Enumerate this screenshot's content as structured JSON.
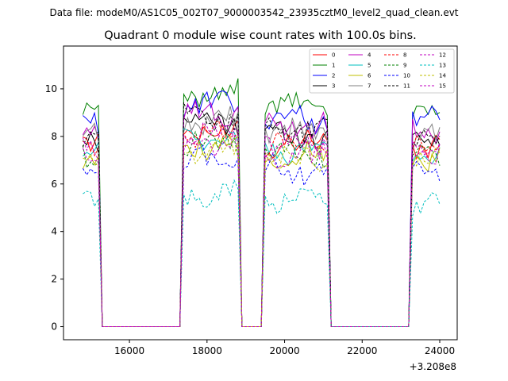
{
  "figure": {
    "suptitle": "Data file: modeM0/AS1C05_002T07_9000003542_23935cztM0_level2_quad_clean.evt"
  },
  "chart_data": {
    "type": "line",
    "title": "Quadrant 0 module wise count rates with 100.0s bins.",
    "xlabel": "",
    "ylabel": "",
    "x_offset_label": "+3.208e8",
    "xlim": [
      14300,
      24450
    ],
    "ylim": [
      -0.55,
      11.8
    ],
    "xticks": [
      16000,
      18000,
      20000,
      22000,
      24000
    ],
    "xtick_labels": [
      "16000",
      "18000",
      "20000",
      "22000",
      "24000"
    ],
    "yticks": [
      0,
      2,
      4,
      6,
      8,
      10
    ],
    "ytick_labels": [
      "0",
      "2",
      "4",
      "6",
      "8",
      "10"
    ],
    "grid": false,
    "legend": {
      "location": "top-right",
      "columns": 4
    },
    "gti_segments": [
      [
        14800,
        15200
      ],
      [
        17400,
        18800
      ],
      [
        19500,
        21100
      ],
      [
        23300,
        24000
      ]
    ],
    "series": [
      {
        "name": "0",
        "color": "#ff0000",
        "dashed": false,
        "level": 7.6
      },
      {
        "name": "1",
        "color": "#008000",
        "dashed": false,
        "level": 9.1
      },
      {
        "name": "2",
        "color": "#0000ff",
        "dashed": false,
        "level": 8.6
      },
      {
        "name": "3",
        "color": "#000000",
        "dashed": false,
        "level": 7.9
      },
      {
        "name": "4",
        "color": "#c000c0",
        "dashed": false,
        "level": 8.3
      },
      {
        "name": "5",
        "color": "#00bfbf",
        "dashed": false,
        "level": 7.3
      },
      {
        "name": "6",
        "color": "#bfbf00",
        "dashed": false,
        "level": 7.0
      },
      {
        "name": "7",
        "color": "#808080",
        "dashed": false,
        "level": 8.0
      },
      {
        "name": "8",
        "color": "#ff0000",
        "dashed": true,
        "level": 7.5
      },
      {
        "name": "9",
        "color": "#008000",
        "dashed": true,
        "level": 7.1
      },
      {
        "name": "10",
        "color": "#0000ff",
        "dashed": true,
        "level": 6.5
      },
      {
        "name": "11",
        "color": "#000000",
        "dashed": true,
        "level": 8.1
      },
      {
        "name": "12",
        "color": "#c000c0",
        "dashed": true,
        "level": 7.2
      },
      {
        "name": "13",
        "color": "#00bfbf",
        "dashed": true,
        "level": 5.2
      },
      {
        "name": "14",
        "color": "#bfbf00",
        "dashed": true,
        "level": 6.9
      },
      {
        "name": "15",
        "color": "#c000c0",
        "dashed": true,
        "level": 7.4
      }
    ]
  }
}
